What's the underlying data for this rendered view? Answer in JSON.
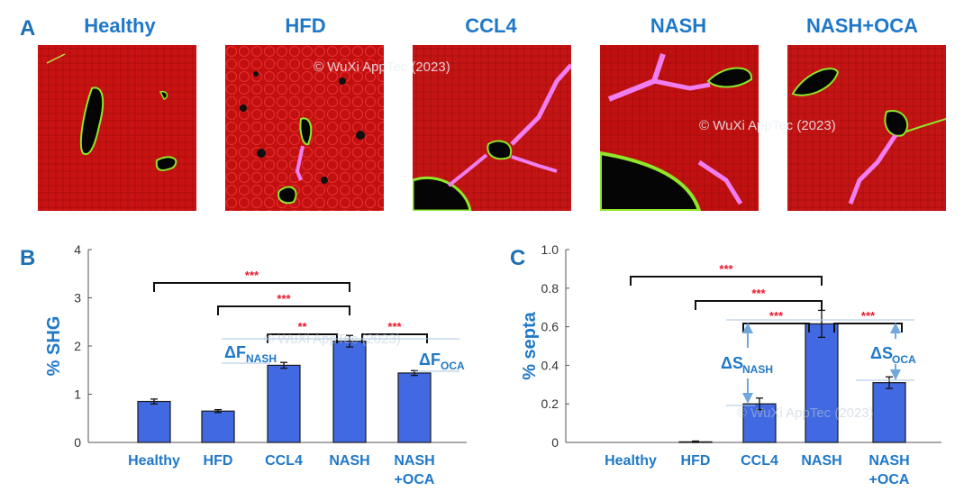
{
  "panel_a": {
    "letter": "A",
    "titles": [
      "Healthy",
      "HFD",
      "CCL4",
      "NASH",
      "NASH+OCA"
    ]
  },
  "watermark": "© WuXi AppTec (2023)",
  "colors": {
    "title_blue": "#1f78c8",
    "bar_fill": "#4169e1",
    "sig_red": "#e8192c",
    "tissue_red": "#c91212",
    "septa_pink": "#f07ef0",
    "vessel_green": "#8fe62a"
  },
  "chart_data": [
    {
      "panel": "B",
      "type": "bar",
      "categories": [
        "Healthy",
        "HFD",
        "CCL4",
        "NASH",
        "NASH\n+OCA"
      ],
      "values": [
        0.85,
        0.65,
        1.6,
        2.1,
        1.44
      ],
      "errors": [
        0.05,
        0.03,
        0.06,
        0.12,
        0.05
      ],
      "ylabel": "% SHG",
      "ylim": [
        0,
        4
      ],
      "yticks": [
        "0",
        "1",
        "2",
        "3",
        "4"
      ],
      "significance": [
        {
          "from": 0,
          "to": 3,
          "label": "***"
        },
        {
          "from": 1,
          "to": 3,
          "label": "***"
        },
        {
          "from": 2,
          "to": 3,
          "label": "**"
        },
        {
          "from": 3,
          "to": 4,
          "label": "***"
        }
      ],
      "annotations": [
        {
          "text": "ΔF",
          "sub": "NASH",
          "between": [
            2,
            3
          ]
        },
        {
          "text": "ΔF",
          "sub": "OCA",
          "between": [
            4,
            3
          ]
        }
      ]
    },
    {
      "panel": "C",
      "type": "bar",
      "categories": [
        "Healthy",
        "HFD",
        "CCL4",
        "NASH",
        "NASH\n+OCA"
      ],
      "values": [
        0.0,
        0.003,
        0.2,
        0.615,
        0.31
      ],
      "errors": [
        0.0,
        0.004,
        0.03,
        0.07,
        0.03
      ],
      "ylabel": "% septa",
      "ylim": [
        0,
        1.0
      ],
      "yticks": [
        "0",
        "0.2",
        "0.4",
        "0.6",
        "0.8",
        "1.0"
      ],
      "significance": [
        {
          "from": 0,
          "to": 3,
          "label": "***"
        },
        {
          "from": 1,
          "to": 3,
          "label": "***"
        },
        {
          "from": 2,
          "to": 3,
          "label": "***"
        },
        {
          "from": 3,
          "to": 4,
          "label": "***"
        }
      ],
      "annotations": [
        {
          "text": "ΔS",
          "sub": "NASH",
          "between": [
            2,
            3
          ]
        },
        {
          "text": "ΔS",
          "sub": "OCA",
          "between": [
            4,
            3
          ]
        }
      ]
    }
  ]
}
